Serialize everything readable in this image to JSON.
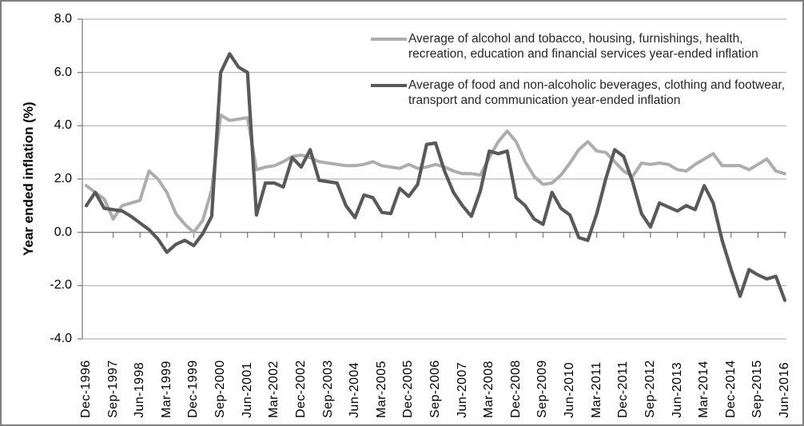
{
  "frame": {
    "border_color": "#808080",
    "background": "#ffffff"
  },
  "y_axis": {
    "title": "Year ended inflation (%)",
    "tick_labels": [
      "8.0",
      "6.0",
      "4.0",
      "2.0",
      "0.0",
      "-2.0",
      "-4.0"
    ],
    "min": -4,
    "max": 8,
    "step": 2
  },
  "x_axis": {
    "tick_labels": [
      "Dec-1996",
      "Sep-1997",
      "Jun-1998",
      "Mar-1999",
      "Dec-1999",
      "Sep-2000",
      "Jun-2001",
      "Mar-2002",
      "Dec-2002",
      "Sep-2003",
      "Jun-2004",
      "Mar-2005",
      "Dec-2005",
      "Sep-2006",
      "Jun-2007",
      "Mar-2008",
      "Dec-2008",
      "Sep-2009",
      "Jun-2010",
      "Mar-2011",
      "Dec-2011",
      "Sep-2012",
      "Jun-2013",
      "Mar-2014",
      "Dec-2014",
      "Sep-2015",
      "Jun-2016"
    ],
    "quarters_per_tick": 3
  },
  "legend": {
    "items": [
      {
        "series": "light",
        "color": "#adadad",
        "lines": [
          "Average of alcohol and tobacco, housing, furnishings, health,",
          "recreation, education and financial services year-ended inflation"
        ]
      },
      {
        "series": "dark",
        "color": "#595959",
        "lines": [
          "Average of food and non-alcoholic beverages, clothing and footwear,",
          "transport and communication year-ended inflation"
        ]
      }
    ]
  },
  "chart_data": {
    "type": "line",
    "frequency": "quarterly",
    "x_start": "Dec-1996",
    "x_end": "Jun-2016",
    "x_tick_labels": [
      "Dec-1996",
      "Sep-1997",
      "Jun-1998",
      "Mar-1999",
      "Dec-1999",
      "Sep-2000",
      "Jun-2001",
      "Mar-2002",
      "Dec-2002",
      "Sep-2003",
      "Jun-2004",
      "Mar-2005",
      "Dec-2005",
      "Sep-2006",
      "Jun-2007",
      "Mar-2008",
      "Dec-2008",
      "Sep-2009",
      "Jun-2010",
      "Mar-2011",
      "Dec-2011",
      "Sep-2012",
      "Jun-2013",
      "Mar-2014",
      "Dec-2014",
      "Sep-2015",
      "Jun-2016"
    ],
    "ylabel": "Year ended inflation (%)",
    "ylim": [
      -4,
      8
    ],
    "ytick_step": 2,
    "grid": "horizontal",
    "legend_position": "top-right-inside",
    "series": [
      {
        "name": "Average of alcohol and tobacco, housing, furnishings, health, recreation, education and financial services year-ended inflation",
        "color": "#adadad",
        "stroke_width": 4,
        "values": [
          1.75,
          1.5,
          1.25,
          0.5,
          1.0,
          1.1,
          1.2,
          2.3,
          2.0,
          1.5,
          0.7,
          0.3,
          0.0,
          0.45,
          1.6,
          4.4,
          4.2,
          4.25,
          4.3,
          2.35,
          2.45,
          2.5,
          2.65,
          2.85,
          2.9,
          2.8,
          2.65,
          2.6,
          2.55,
          2.5,
          2.5,
          2.55,
          2.65,
          2.5,
          2.45,
          2.4,
          2.55,
          2.4,
          2.45,
          2.55,
          2.45,
          2.3,
          2.2,
          2.2,
          2.15,
          2.8,
          3.4,
          3.8,
          3.4,
          2.65,
          2.1,
          1.8,
          1.85,
          2.15,
          2.6,
          3.1,
          3.4,
          3.05,
          3.0,
          2.65,
          2.3,
          2.1,
          2.6,
          2.55,
          2.6,
          2.55,
          2.35,
          2.3,
          2.55,
          2.75,
          2.95,
          2.5,
          2.5,
          2.5,
          2.35,
          2.55,
          2.75,
          2.3,
          2.2
        ]
      },
      {
        "name": "Average of food and non-alcoholic beverages, clothing and footwear, transport and communication year-ended inflation",
        "color": "#595959",
        "stroke_width": 4.2,
        "values": [
          1.0,
          1.5,
          0.9,
          0.85,
          0.8,
          0.6,
          0.35,
          0.1,
          -0.25,
          -0.75,
          -0.45,
          -0.3,
          -0.5,
          -0.05,
          0.6,
          6.0,
          6.7,
          6.2,
          6.0,
          0.65,
          1.85,
          1.85,
          1.7,
          2.8,
          2.45,
          3.1,
          1.95,
          1.9,
          1.85,
          1.0,
          0.55,
          1.4,
          1.3,
          0.75,
          0.7,
          1.65,
          1.35,
          1.8,
          3.3,
          3.35,
          2.3,
          1.5,
          1.0,
          0.6,
          1.55,
          3.05,
          2.95,
          3.05,
          1.3,
          1.0,
          0.5,
          0.3,
          1.5,
          0.9,
          0.65,
          -0.2,
          -0.3,
          0.7,
          2.0,
          3.1,
          2.85,
          1.9,
          0.7,
          0.2,
          1.1,
          0.95,
          0.8,
          1.0,
          0.85,
          1.75,
          1.1,
          -0.3,
          -1.4,
          -2.4,
          -1.4,
          -1.6,
          -1.75,
          -1.65,
          -2.55
        ]
      }
    ]
  },
  "style": {
    "gridline_color": "#a6a6a6",
    "axis_color": "#7f7f7f",
    "tick_color": "#7f7f7f"
  }
}
